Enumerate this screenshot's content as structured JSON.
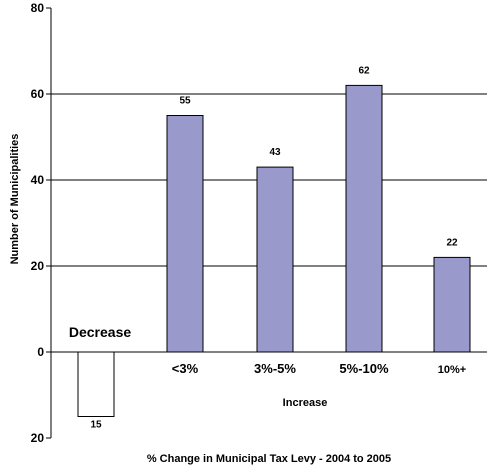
{
  "chart_data": {
    "type": "bar",
    "categories": [
      "",
      "<3%",
      "3%-5%",
      "5%-10%",
      "10%+"
    ],
    "values": [
      -15,
      55,
      43,
      62,
      22
    ],
    "data_labels": [
      "15",
      "55",
      "43",
      "62",
      "22"
    ],
    "title": "",
    "xlabel": "% Change in Municipal Tax Levy - 2004 to 2005",
    "ylabel": "Number of Municipalities",
    "ylim": [
      -20,
      80
    ],
    "y_ticks": [
      80,
      60,
      40,
      20,
      0,
      -20
    ],
    "y_tick_labels": [
      "80",
      "60",
      "40",
      "20",
      "0",
      "20"
    ],
    "grid": true,
    "annotations": {
      "decrease": "Decrease",
      "increase": "Increase"
    },
    "colors": {
      "bar_fill": "#9999cc",
      "negative_fill": "#ffffff",
      "outline": "#000000",
      "grid": "#000000"
    }
  }
}
